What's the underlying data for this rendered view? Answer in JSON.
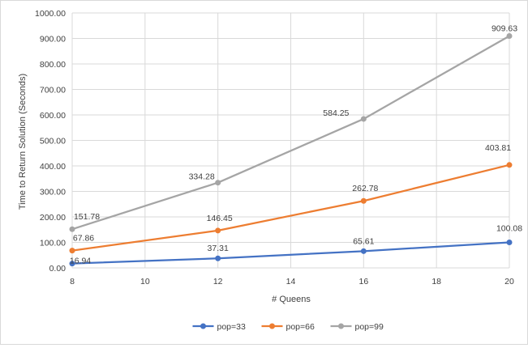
{
  "chart_data": {
    "type": "line",
    "xlabel": "# Queens",
    "ylabel": "Time to Return Solution (Seconds)",
    "x": [
      8,
      12,
      16,
      20
    ],
    "xlim": [
      8,
      20
    ],
    "x_ticks": [
      8,
      10,
      12,
      14,
      16,
      18,
      20
    ],
    "ylim": [
      0,
      1000
    ],
    "y_ticks": [
      0,
      100,
      200,
      300,
      400,
      500,
      600,
      700,
      800,
      900,
      1000
    ],
    "y_tick_labels": [
      "0.00",
      "100.00",
      "200.00",
      "300.00",
      "400.00",
      "500.00",
      "600.00",
      "700.00",
      "800.00",
      "900.00",
      "1000.00"
    ],
    "grid": true,
    "legend_position": "bottom",
    "series": [
      {
        "name": "pop=33",
        "color": "#4472c4",
        "values": [
          16.94,
          37.31,
          65.61,
          100.08
        ],
        "labels": [
          "16.94",
          "37.31",
          "65.61",
          "100.08"
        ]
      },
      {
        "name": "pop=66",
        "color": "#ed7d31",
        "values": [
          67.86,
          146.45,
          262.78,
          403.81
        ],
        "labels": [
          "67.86",
          "146.45",
          "262.78",
          "403.81"
        ]
      },
      {
        "name": "pop=99",
        "color": "#a5a5a5",
        "values": [
          151.78,
          334.28,
          584.25,
          909.63
        ],
        "labels": [
          "151.78",
          "334.28",
          "584.25",
          "909.63"
        ]
      }
    ]
  }
}
